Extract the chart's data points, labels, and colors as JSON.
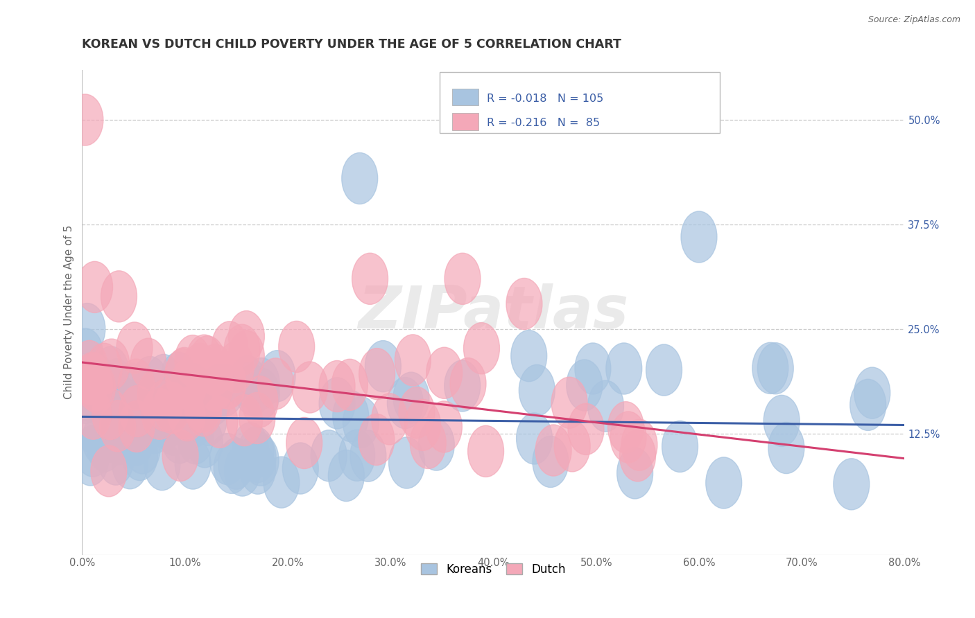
{
  "title": "KOREAN VS DUTCH CHILD POVERTY UNDER THE AGE OF 5 CORRELATION CHART",
  "source_text": "Source: ZipAtlas.com",
  "ylabel": "Child Poverty Under the Age of 5",
  "xlim": [
    0.0,
    80.0
  ],
  "ylim": [
    -2.0,
    56.0
  ],
  "xticklabels": [
    "0.0%",
    "10.0%",
    "20.0%",
    "30.0%",
    "40.0%",
    "50.0%",
    "60.0%",
    "70.0%",
    "80.0%"
  ],
  "xtickvalues": [
    0,
    10,
    20,
    30,
    40,
    50,
    60,
    70,
    80
  ],
  "right_ytick_values": [
    12.5,
    25.0,
    37.5,
    50.0
  ],
  "right_ytick_labels": [
    "12.5%",
    "25.0%",
    "37.5%",
    "50.0%"
  ],
  "korean_color": "#a8c4e0",
  "dutch_color": "#f4a8b8",
  "korean_line_color": "#3b5ea6",
  "dutch_line_color": "#d44070",
  "korean_R": -0.018,
  "korean_N": 105,
  "dutch_R": -0.216,
  "dutch_N": 85,
  "watermark": "ZIPatlas",
  "grid_color": "#cccccc",
  "background_color": "#ffffff",
  "legend_label_korean": "Koreans",
  "legend_label_dutch": "Dutch",
  "korean_line_y0": 14.5,
  "korean_line_y1": 13.5,
  "dutch_line_y0": 21.0,
  "dutch_line_y1": 9.5
}
